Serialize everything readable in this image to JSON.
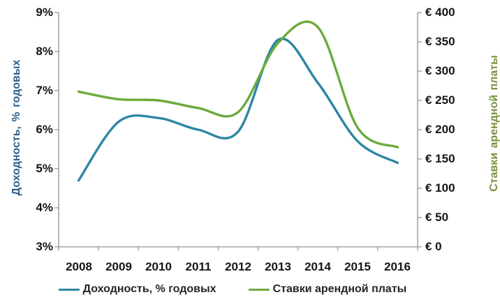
{
  "chart_data": {
    "type": "line",
    "smooth": true,
    "grid": false,
    "background": "#FFFFFF",
    "axis_line_color": "#919191",
    "tick_text_color": "#151515",
    "categories": [
      "2008",
      "2009",
      "2010",
      "2011",
      "2012",
      "2013",
      "2014",
      "2015",
      "2016"
    ],
    "series": [
      {
        "name": "Доходность, % годовых",
        "axis": "left",
        "color": "#2E86A3",
        "values": [
          4.7,
          6.2,
          6.3,
          6.0,
          5.95,
          8.3,
          7.2,
          5.7,
          5.15
        ]
      },
      {
        "name": "Ставки арендной платы",
        "axis": "right",
        "color": "#6BAA3C",
        "values": [
          265,
          252,
          250,
          237,
          230,
          348,
          375,
          203,
          170
        ]
      }
    ],
    "left_axis": {
      "label": "Доходность, % годовых",
      "title_color": "#2A5F8C",
      "min": 3,
      "max": 9,
      "tick_labels": [
        "9%",
        "8%",
        "7%",
        "6%",
        "5%",
        "4%",
        "3%"
      ]
    },
    "right_axis": {
      "label": "Ставки арендной платы",
      "title_color": "#77933C",
      "min": 0,
      "max": 400,
      "tick_labels": [
        "€ 400",
        "€ 350",
        "€ 300",
        "€ 250",
        "€ 200",
        "€ 150",
        "€ 100",
        "€ 50",
        "€ 0"
      ]
    },
    "legend_position": "bottom"
  }
}
